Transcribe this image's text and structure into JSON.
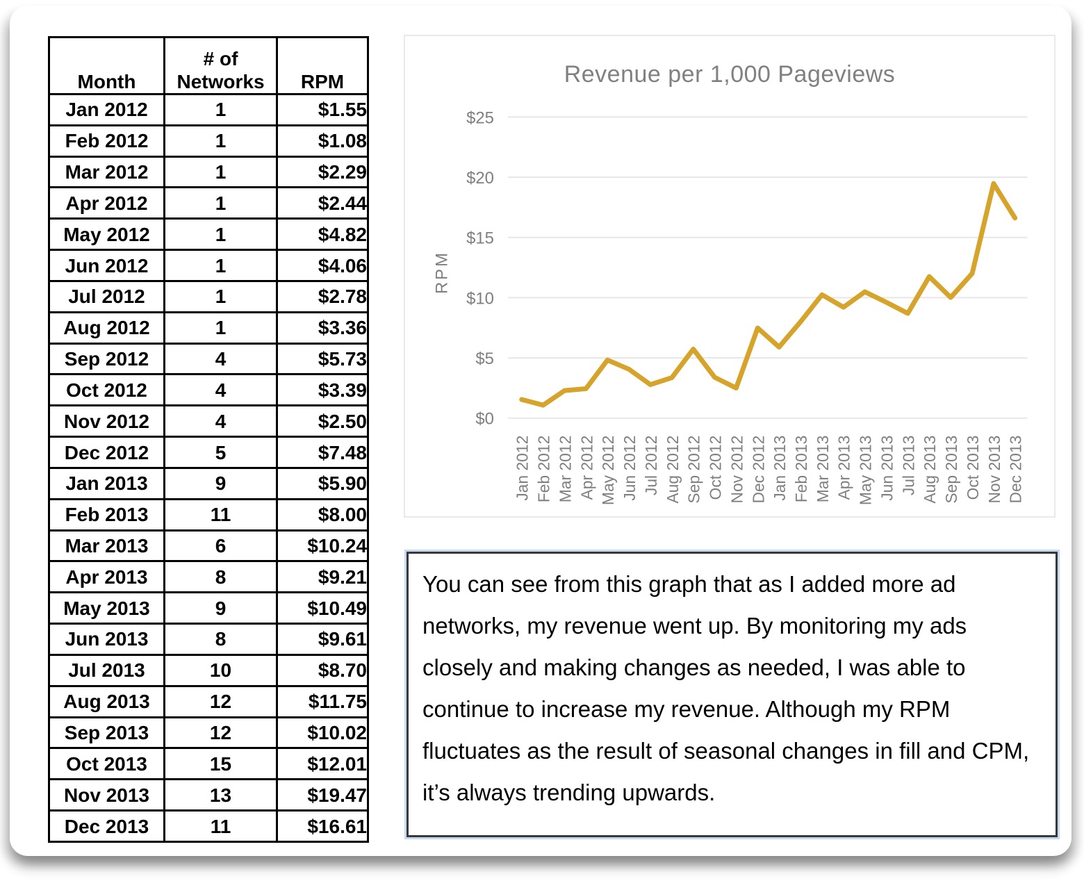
{
  "table": {
    "headers": {
      "month": "Month",
      "networks": "# of\nNetworks",
      "rpm": "RPM"
    },
    "rows": [
      [
        "Jan 2012",
        "1",
        "$1.55"
      ],
      [
        "Feb 2012",
        "1",
        "$1.08"
      ],
      [
        "Mar 2012",
        "1",
        "$2.29"
      ],
      [
        "Apr 2012",
        "1",
        "$2.44"
      ],
      [
        "May 2012",
        "1",
        "$4.82"
      ],
      [
        "Jun 2012",
        "1",
        "$4.06"
      ],
      [
        "Jul 2012",
        "1",
        "$2.78"
      ],
      [
        "Aug 2012",
        "1",
        "$3.36"
      ],
      [
        "Sep 2012",
        "4",
        "$5.73"
      ],
      [
        "Oct 2012",
        "4",
        "$3.39"
      ],
      [
        "Nov 2012",
        "4",
        "$2.50"
      ],
      [
        "Dec 2012",
        "5",
        "$7.48"
      ],
      [
        "Jan 2013",
        "9",
        "$5.90"
      ],
      [
        "Feb 2013",
        "11",
        "$8.00"
      ],
      [
        "Mar 2013",
        "6",
        "$10.24"
      ],
      [
        "Apr 2013",
        "8",
        "$9.21"
      ],
      [
        "May 2013",
        "9",
        "$10.49"
      ],
      [
        "Jun 2013",
        "8",
        "$9.61"
      ],
      [
        "Jul 2013",
        "10",
        "$8.70"
      ],
      [
        "Aug 2013",
        "12",
        "$11.75"
      ],
      [
        "Sep 2013",
        "12",
        "$10.02"
      ],
      [
        "Oct 2013",
        "15",
        "$12.01"
      ],
      [
        "Nov 2013",
        "13",
        "$19.47"
      ],
      [
        "Dec 2013",
        "11",
        "$16.61"
      ]
    ]
  },
  "chart_data": {
    "type": "line",
    "title": "Revenue per 1,000 Pageviews",
    "ylabel": "RPM",
    "xlabel": "",
    "x": [
      "Jan 2012",
      "Feb 2012",
      "Mar 2012",
      "Apr 2012",
      "May 2012",
      "Jun 2012",
      "Jul 2012",
      "Aug 2012",
      "Sep 2012",
      "Oct 2012",
      "Nov 2012",
      "Dec 2012",
      "Jan 2013",
      "Feb 2013",
      "Mar 2013",
      "Apr 2013",
      "May 2013",
      "Jun 2013",
      "Jul 2013",
      "Aug 2013",
      "Sep 2013",
      "Oct 2013",
      "Nov 2013",
      "Dec 2013"
    ],
    "series": [
      {
        "name": "RPM",
        "values": [
          1.55,
          1.08,
          2.29,
          2.44,
          4.82,
          4.06,
          2.78,
          3.36,
          5.73,
          3.39,
          2.5,
          7.48,
          5.9,
          8.0,
          10.24,
          9.21,
          10.49,
          9.61,
          8.7,
          11.75,
          10.02,
          12.01,
          19.47,
          16.61
        ]
      }
    ],
    "ylim": [
      0,
      25
    ],
    "yticks": [
      0,
      5,
      10,
      15,
      20,
      25
    ],
    "ytick_prefix": "$",
    "grid": true,
    "legend": false
  },
  "commentary": {
    "text": "You can see from this graph that as I added more ad networks, my revenue went up. By monitoring my ads closely and making changes as needed, I was able to continue to increase my revenue. Although my RPM fluctuates as the result of seasonal changes in fill and CPM, it’s always trending upwards."
  },
  "colors": {
    "line": "#d6a42a",
    "grid": "#e7e7e7",
    "axis_text": "#7f7f7f",
    "title_text": "#808080"
  }
}
